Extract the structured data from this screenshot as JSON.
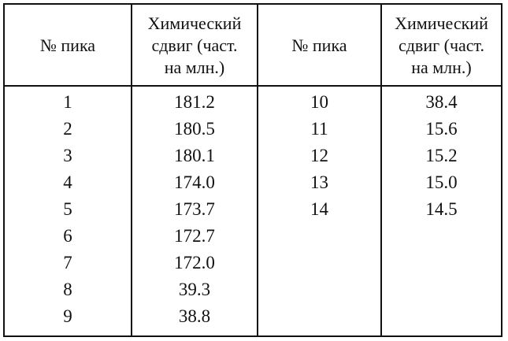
{
  "table": {
    "headers": {
      "peak_left": "№ пика",
      "shift_left": [
        "Химический",
        "сдвиг (част.",
        "на млн.)"
      ],
      "peak_right": "№ пика",
      "shift_right": [
        "Химический",
        "сдвиг (част.",
        "на млн.)"
      ]
    },
    "left_rows": [
      {
        "peak": "1",
        "shift": "181.2"
      },
      {
        "peak": "2",
        "shift": "180.5"
      },
      {
        "peak": "3",
        "shift": "180.1"
      },
      {
        "peak": "4",
        "shift": "174.0"
      },
      {
        "peak": "5",
        "shift": "173.7"
      },
      {
        "peak": "6",
        "shift": "172.7"
      },
      {
        "peak": "7",
        "shift": "172.0"
      },
      {
        "peak": "8",
        "shift": "39.3"
      },
      {
        "peak": "9",
        "shift": "38.8"
      }
    ],
    "right_rows": [
      {
        "peak": "10",
        "shift": "38.4"
      },
      {
        "peak": "11",
        "shift": "15.6"
      },
      {
        "peak": "12",
        "shift": "15.2"
      },
      {
        "peak": "13",
        "shift": "15.0"
      },
      {
        "peak": "14",
        "shift": "14.5"
      }
    ]
  }
}
